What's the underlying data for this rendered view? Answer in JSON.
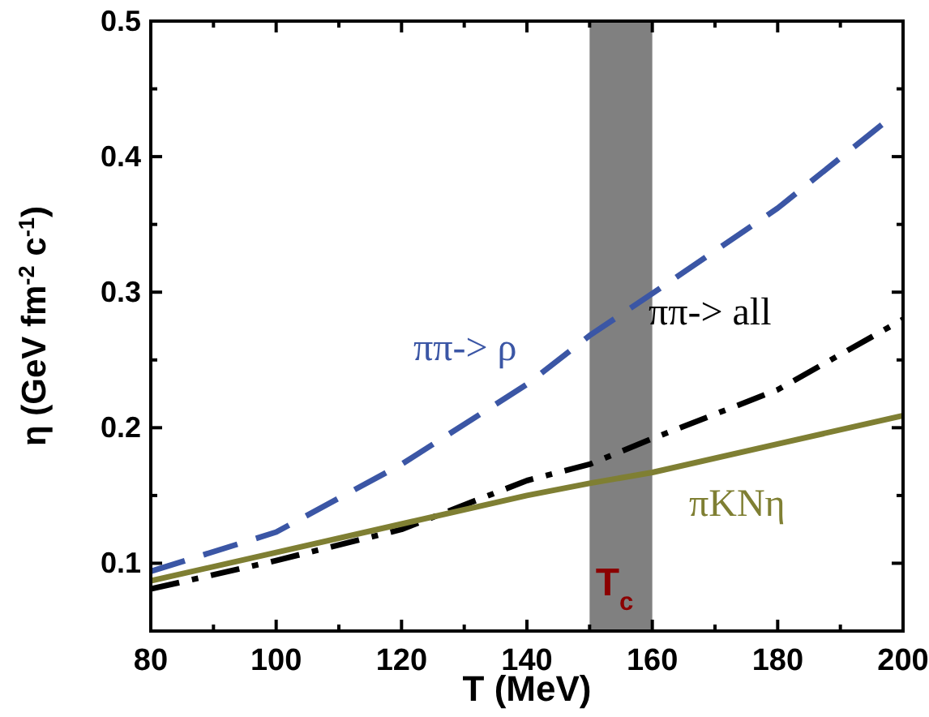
{
  "chart_data": {
    "type": "line",
    "xlabel": "T (MeV)",
    "ylabel": "η (GeV fm$^{-2}$ c$^{-1}$)",
    "xlim": [
      80,
      200
    ],
    "xticks": [
      80,
      100,
      120,
      140,
      160,
      180,
      200
    ],
    "ylim": [
      0.05,
      0.5
    ],
    "yticks": [
      0.1,
      0.2,
      0.3,
      0.4,
      0.5
    ],
    "grid": false,
    "bands": [
      {
        "axis": "x",
        "from": 150,
        "to": 160,
        "label": "T$_{c}$",
        "color": "#808080"
      }
    ],
    "series": [
      {
        "name": "ππ-> ρ",
        "color": "#3b56a5",
        "line_style": "dashed",
        "x": [
          80,
          100,
          120,
          140,
          150,
          160,
          180,
          197
        ],
        "values": [
          0.094,
          0.123,
          0.173,
          0.232,
          0.268,
          0.299,
          0.362,
          0.425
        ]
      },
      {
        "name": "ππ-> all",
        "color": "#000000",
        "line_style": "dashdot",
        "x": [
          80,
          100,
          120,
          140,
          150,
          160,
          180,
          200
        ],
        "values": [
          0.081,
          0.102,
          0.125,
          0.161,
          0.173,
          0.192,
          0.228,
          0.28
        ]
      },
      {
        "name": "πKNη",
        "color": "#7f7f33",
        "line_style": "solid",
        "x": [
          80,
          100,
          120,
          140,
          150,
          160,
          180,
          200
        ],
        "values": [
          0.087,
          0.108,
          0.129,
          0.15,
          0.159,
          0.167,
          0.188,
          0.209
        ]
      }
    ]
  }
}
